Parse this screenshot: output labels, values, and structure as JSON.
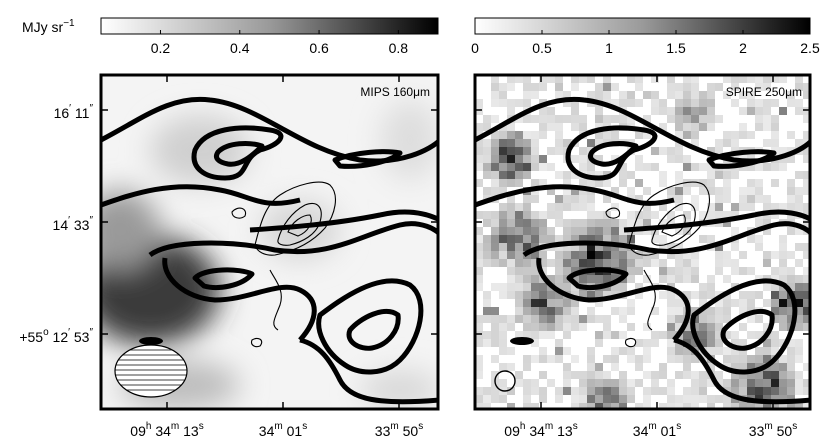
{
  "unit_label": "MJy sr",
  "unit_exponent": "−1",
  "panels": [
    {
      "label": "MIPS 160μm",
      "colorbar_ticks": [
        "0.2",
        "0.4",
        "0.6",
        "0.8"
      ],
      "colorbar_range": [
        0.05,
        0.9
      ]
    },
    {
      "label": "SPIRE 250μm",
      "colorbar_ticks": [
        "0",
        "0.5",
        "1",
        "1.5",
        "2",
        "2.5"
      ],
      "colorbar_range": [
        0,
        2.5
      ]
    }
  ],
  "dec_ticks": [
    {
      "deg": "",
      "arcmin": "16",
      "arcsec": "11"
    },
    {
      "deg": "",
      "arcmin": "14",
      "arcsec": "33"
    },
    {
      "deg": "+55",
      "arcmin": "12",
      "arcsec": "53"
    }
  ],
  "ra_ticks": [
    {
      "h": "09",
      "m": "34",
      "s": "13"
    },
    {
      "h": "",
      "m": "34",
      "s": "01"
    },
    {
      "h": "",
      "m": "33",
      "s": "50"
    }
  ]
}
